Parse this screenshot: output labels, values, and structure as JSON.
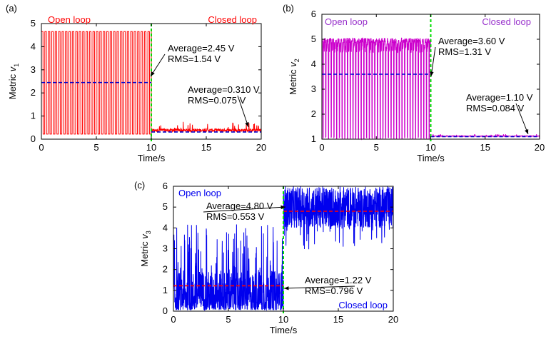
{
  "chart_data": [
    {
      "type": "line",
      "panel_label": "(a)",
      "xlabel": "Time/s",
      "ylabel_base": "Metric ",
      "ylabel_var": "v",
      "ylabel_sub": "1",
      "xlim": [
        0,
        20
      ],
      "ylim": [
        0,
        5
      ],
      "xticks": [
        "0",
        "5",
        "10",
        "15",
        "20"
      ],
      "yticks": [
        "0",
        "1",
        "2",
        "3",
        "4",
        "5"
      ],
      "switch_time": 10,
      "colors": {
        "signal": "#ff0000",
        "average": "#0000cc",
        "switch": "#00dd00",
        "mode_text": "#ff0000"
      },
      "modes": {
        "left": "Open loop",
        "right": "Closed loop"
      },
      "open_loop": {
        "t": [
          0,
          10
        ],
        "signal_min": 0.22,
        "signal_max": 4.65,
        "average": 2.45
      },
      "closed_loop": {
        "t": [
          10,
          20
        ],
        "signal_min": 0.2,
        "signal_max": 0.75,
        "average": 0.31
      },
      "annotations": [
        {
          "line1": "Average=2.45 V",
          "line2": "RMS=1.54 V"
        },
        {
          "line1": "Average=0.310 V",
          "line2": "RMS=0.075 V"
        }
      ]
    },
    {
      "type": "line",
      "panel_label": "(b)",
      "xlabel": "Time/s",
      "ylabel_base": "Metric ",
      "ylabel_var": "v",
      "ylabel_sub": "2",
      "xlim": [
        0,
        20
      ],
      "ylim": [
        1,
        6
      ],
      "xticks": [
        "0",
        "5",
        "10",
        "15",
        "20"
      ],
      "yticks": [
        "1",
        "2",
        "3",
        "4",
        "5",
        "6"
      ],
      "switch_time": 10,
      "colors": {
        "signal": "#cc00cc",
        "average": "#0000cc",
        "switch": "#00dd00",
        "mode_text": "#9933cc"
      },
      "modes": {
        "left": "Open loop",
        "right": "Closed loop"
      },
      "open_loop": {
        "t": [
          0,
          10
        ],
        "signal_min": 1.0,
        "signal_max": 5.05,
        "average": 3.6
      },
      "closed_loop": {
        "t": [
          10,
          20
        ],
        "signal_min": 1.02,
        "signal_max": 1.2,
        "average": 1.1
      },
      "annotations": [
        {
          "line1": "Average=3.60 V",
          "line2": "RMS=1.31 V"
        },
        {
          "line1": "Average=1.10 V",
          "line2": "RMS=0.084 V"
        }
      ]
    },
    {
      "type": "line",
      "panel_label": "(c)",
      "xlabel": "Time/s",
      "ylabel_base": "Metric ",
      "ylabel_var": "v",
      "ylabel_sub": "3",
      "xlim": [
        0,
        20
      ],
      "ylim": [
        0,
        6
      ],
      "xticks": [
        "0",
        "5",
        "10",
        "15",
        "20"
      ],
      "yticks": [
        "0",
        "1",
        "2",
        "3",
        "4",
        "5",
        "6"
      ],
      "switch_time": 10,
      "colors": {
        "signal": "#0000ee",
        "average": "#ff0000",
        "switch": "#00dd00",
        "mode_text": "#0000ee"
      },
      "modes": {
        "left": "Open loop",
        "right": "Closed loop"
      },
      "open_loop": {
        "t": [
          0,
          10
        ],
        "signal_min": 0.05,
        "signal_max": 4.2,
        "average": 1.22
      },
      "closed_loop": {
        "t": [
          10,
          20
        ],
        "signal_min": 2.8,
        "signal_max": 6.0,
        "average": 4.8
      },
      "annotations": [
        {
          "line1": "Average=4.80 V",
          "line2": "RMS=0.553 V"
        },
        {
          "line1": "Average=1.22 V",
          "line2": "RMS=0.796 V"
        }
      ]
    }
  ]
}
